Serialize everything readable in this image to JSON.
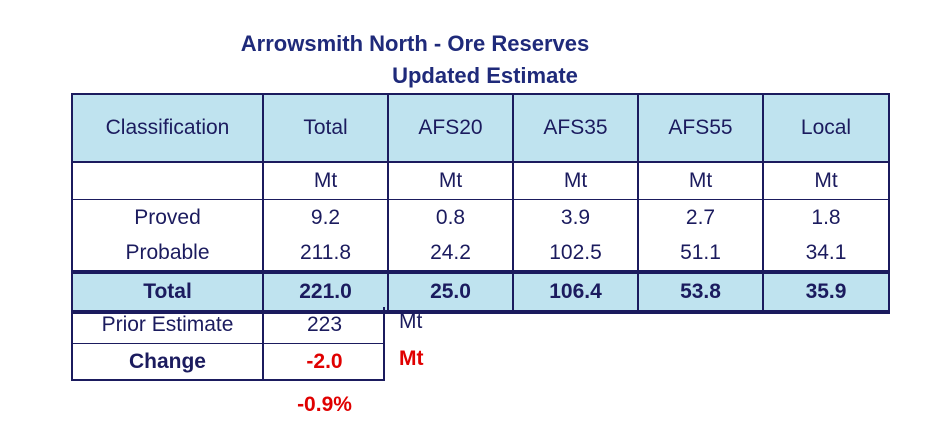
{
  "title": "Arrowsmith North - Ore Reserves",
  "subtitle": "Updated Estimate",
  "table": {
    "headers": [
      "Classification",
      "Total",
      "AFS20",
      "AFS35",
      "AFS55",
      "Local"
    ],
    "units": [
      "",
      "Mt",
      "Mt",
      "Mt",
      "Mt",
      "Mt"
    ],
    "rows": [
      [
        "Proved",
        "9.2",
        "0.8",
        "3.9",
        "2.7",
        "1.8"
      ],
      [
        "Probable",
        "211.8",
        "24.2",
        "102.5",
        "51.1",
        "34.1"
      ]
    ],
    "total": [
      "Total",
      "221.0",
      "25.0",
      "106.4",
      "53.8",
      "35.9"
    ]
  },
  "prior": {
    "label": "Prior Estimate",
    "value": "223",
    "unit": "Mt"
  },
  "change": {
    "label": "Change",
    "value": "-2.0",
    "unit": "Mt",
    "percent": "-0.9%"
  },
  "colors": {
    "header_fill": "#bfe3ef",
    "text": "#1b1b5e",
    "title": "#1f2a7a",
    "negative": "#e00000"
  }
}
